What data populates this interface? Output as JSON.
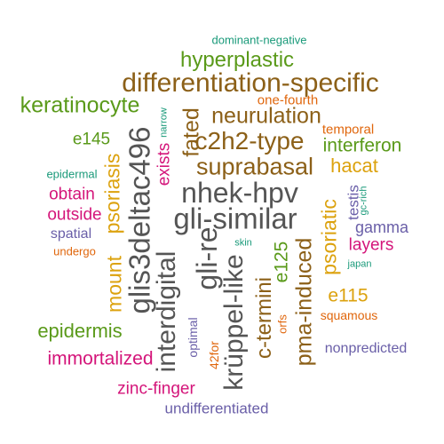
{
  "palette": {
    "brown": "#8c6018",
    "gray": "#555555",
    "green": "#5a9a1a",
    "magenta": "#d4157a",
    "orange": "#e0660c",
    "gold": "#dca20e",
    "purple": "#6a5fa8",
    "teal": "#1a9a7a"
  },
  "words": [
    {
      "text": "dominant-negative",
      "color": "#1a9a7a"
    },
    {
      "text": "hyperplastic",
      "color": "#5a9a1a"
    },
    {
      "text": "differentiation-specific",
      "color": "#8c6018"
    },
    {
      "text": "keratinocyte",
      "color": "#5a9a1a"
    },
    {
      "text": "one-fourth",
      "color": "#e0660c"
    },
    {
      "text": "narrow",
      "color": "#1a9a7a"
    },
    {
      "text": "fated",
      "color": "#8c6018"
    },
    {
      "text": "neurulation",
      "color": "#8c6018"
    },
    {
      "text": "temporal",
      "color": "#e0660c"
    },
    {
      "text": "e145",
      "color": "#5a9a1a"
    },
    {
      "text": "c2h2-type",
      "color": "#8c6018"
    },
    {
      "text": "interferon",
      "color": "#5a9a1a"
    },
    {
      "text": "glis3deltac496",
      "color": "#555555"
    },
    {
      "text": "exists",
      "color": "#d4157a"
    },
    {
      "text": "suprabasal",
      "color": "#8c6018"
    },
    {
      "text": "hacat",
      "color": "#dca20e"
    },
    {
      "text": "epidermal",
      "color": "#1a9a7a"
    },
    {
      "text": "psoriasis",
      "color": "#dca20e"
    },
    {
      "text": "nhek-hpv",
      "color": "#555555"
    },
    {
      "text": "obtain",
      "color": "#d4157a"
    },
    {
      "text": "testis",
      "color": "#6a5fa8"
    },
    {
      "text": "gc-rich",
      "color": "#1a9a7a"
    },
    {
      "text": "outside",
      "color": "#d4157a"
    },
    {
      "text": "gli-similar",
      "color": "#555555"
    },
    {
      "text": "gamma",
      "color": "#6a5fa8"
    },
    {
      "text": "spatial",
      "color": "#6a5fa8"
    },
    {
      "text": "psoriatic",
      "color": "#dca20e"
    },
    {
      "text": "skin",
      "color": "#1a9a7a"
    },
    {
      "text": "layers",
      "color": "#d4157a"
    },
    {
      "text": "undergo",
      "color": "#e0660c"
    },
    {
      "text": "gli-re",
      "color": "#555555"
    },
    {
      "text": "e125",
      "color": "#5a9a1a"
    },
    {
      "text": "japan",
      "color": "#1a9a7a"
    },
    {
      "text": "mount",
      "color": "#dca20e"
    },
    {
      "text": "interdigital",
      "color": "#555555"
    },
    {
      "text": "krüppel-like",
      "color": "#555555"
    },
    {
      "text": "pma-induced",
      "color": "#8c6018"
    },
    {
      "text": "c-termini",
      "color": "#8c6018"
    },
    {
      "text": "e115",
      "color": "#dca20e"
    },
    {
      "text": "squamous",
      "color": "#e0660c"
    },
    {
      "text": "orfs",
      "color": "#e0660c"
    },
    {
      "text": "epidermis",
      "color": "#5a9a1a"
    },
    {
      "text": "optimal",
      "color": "#6a5fa8"
    },
    {
      "text": "nonpredicted",
      "color": "#6a5fa8"
    },
    {
      "text": "42for",
      "color": "#e0660c"
    },
    {
      "text": "immortalized",
      "color": "#d4157a"
    },
    {
      "text": "zinc-finger",
      "color": "#d4157a"
    },
    {
      "text": "undifferentiated",
      "color": "#6a5fa8"
    }
  ]
}
